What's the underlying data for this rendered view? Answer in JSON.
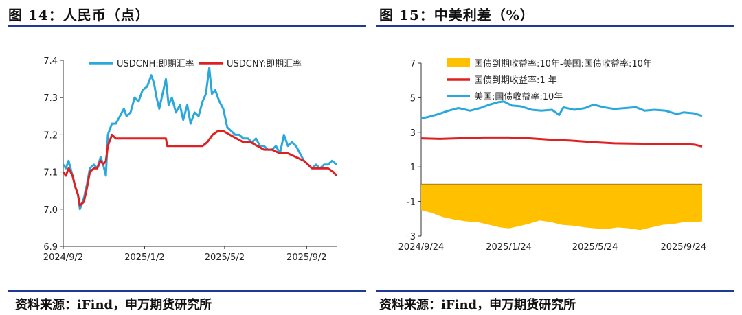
{
  "left": {
    "figure_title": "图 14：人民币（点）",
    "source": "资料来源：iFind，申万期货研究所"
  },
  "right": {
    "figure_title": "图 15：中美利差（%）",
    "source": "资料来源：iFind，申万期货研究所"
  },
  "colors": {
    "usdcnh": "#2aa8dc",
    "usdcny": "#e02020",
    "spread": "#ffc000",
    "us10y": "#2aa8dc",
    "cn1y": "#e02020",
    "rule": "#1f3a93"
  },
  "chart_data": [
    {
      "type": "line",
      "title": "人民币（点）",
      "ylim": [
        6.9,
        7.4
      ],
      "yticks": [
        6.9,
        7.0,
        7.1,
        7.2,
        7.3,
        7.4
      ],
      "ytick_labels": [
        "6.9",
        "7.0",
        "7.1",
        "7.2",
        "7.3",
        "7.4"
      ],
      "xtick_labels": [
        "2024/9/2",
        "2025/1/2",
        "2025/5/2",
        "2025/9/2"
      ],
      "xtick_dates": [
        "2024-09-02",
        "2025-01-02",
        "2025-05-02",
        "2025-09-02"
      ],
      "x_range": [
        "2024-09-02",
        "2025-10-17"
      ],
      "legend_position": "top",
      "grid": false,
      "series": [
        {
          "name": "USDCNH:即期汇率",
          "points": [
            [
              "2024-09-02",
              7.12
            ],
            [
              "2024-09-06",
              7.11
            ],
            [
              "2024-09-10",
              7.13
            ],
            [
              "2024-09-16",
              7.09
            ],
            [
              "2024-09-20",
              7.06
            ],
            [
              "2024-09-24",
              7.04
            ],
            [
              "2024-09-27",
              7.0
            ],
            [
              "2024-10-03",
              7.03
            ],
            [
              "2024-10-08",
              7.07
            ],
            [
              "2024-10-12",
              7.11
            ],
            [
              "2024-10-18",
              7.12
            ],
            [
              "2024-10-23",
              7.11
            ],
            [
              "2024-10-28",
              7.14
            ],
            [
              "2024-11-01",
              7.12
            ],
            [
              "2024-11-05",
              7.09
            ],
            [
              "2024-11-08",
              7.2
            ],
            [
              "2024-11-14",
              7.23
            ],
            [
              "2024-11-20",
              7.23
            ],
            [
              "2024-11-26",
              7.25
            ],
            [
              "2024-12-02",
              7.27
            ],
            [
              "2024-12-06",
              7.25
            ],
            [
              "2024-12-12",
              7.26
            ],
            [
              "2024-12-18",
              7.3
            ],
            [
              "2024-12-24",
              7.29
            ],
            [
              "2024-12-30",
              7.32
            ],
            [
              "2025-01-06",
              7.33
            ],
            [
              "2025-01-12",
              7.36
            ],
            [
              "2025-01-16",
              7.34
            ],
            [
              "2025-01-20",
              7.3
            ],
            [
              "2025-01-24",
              7.27
            ],
            [
              "2025-01-29",
              7.31
            ],
            [
              "2025-02-03",
              7.35
            ],
            [
              "2025-02-07",
              7.28
            ],
            [
              "2025-02-12",
              7.3
            ],
            [
              "2025-02-18",
              7.26
            ],
            [
              "2025-02-24",
              7.28
            ],
            [
              "2025-03-01",
              7.24
            ],
            [
              "2025-03-07",
              7.28
            ],
            [
              "2025-03-12",
              7.23
            ],
            [
              "2025-03-18",
              7.26
            ],
            [
              "2025-03-24",
              7.25
            ],
            [
              "2025-03-30",
              7.29
            ],
            [
              "2025-04-04",
              7.31
            ],
            [
              "2025-04-09",
              7.38
            ],
            [
              "2025-04-13",
              7.31
            ],
            [
              "2025-04-18",
              7.32
            ],
            [
              "2025-04-24",
              7.29
            ],
            [
              "2025-04-30",
              7.27
            ],
            [
              "2025-05-06",
              7.22
            ],
            [
              "2025-05-12",
              7.21
            ],
            [
              "2025-05-18",
              7.2
            ],
            [
              "2025-05-24",
              7.2
            ],
            [
              "2025-05-30",
              7.19
            ],
            [
              "2025-06-06",
              7.19
            ],
            [
              "2025-06-12",
              7.18
            ],
            [
              "2025-06-18",
              7.19
            ],
            [
              "2025-06-24",
              7.17
            ],
            [
              "2025-06-30",
              7.17
            ],
            [
              "2025-07-06",
              7.16
            ],
            [
              "2025-07-12",
              7.16
            ],
            [
              "2025-07-18",
              7.17
            ],
            [
              "2025-07-24",
              7.15
            ],
            [
              "2025-07-30",
              7.2
            ],
            [
              "2025-08-05",
              7.17
            ],
            [
              "2025-08-11",
              7.18
            ],
            [
              "2025-08-17",
              7.17
            ],
            [
              "2025-08-23",
              7.15
            ],
            [
              "2025-08-29",
              7.13
            ],
            [
              "2025-09-04",
              7.12
            ],
            [
              "2025-09-10",
              7.11
            ],
            [
              "2025-09-16",
              7.12
            ],
            [
              "2025-09-22",
              7.11
            ],
            [
              "2025-09-28",
              7.12
            ],
            [
              "2025-10-04",
              7.12
            ],
            [
              "2025-10-10",
              7.13
            ],
            [
              "2025-10-17",
              7.12
            ]
          ]
        },
        {
          "name": "USDCNY:即期汇率",
          "points": [
            [
              "2024-09-02",
              7.1
            ],
            [
              "2024-09-06",
              7.09
            ],
            [
              "2024-09-10",
              7.11
            ],
            [
              "2024-09-16",
              7.09
            ],
            [
              "2024-09-20",
              7.06
            ],
            [
              "2024-09-24",
              7.04
            ],
            [
              "2024-09-27",
              7.01
            ],
            [
              "2024-10-03",
              7.02
            ],
            [
              "2024-10-08",
              7.06
            ],
            [
              "2024-10-12",
              7.1
            ],
            [
              "2024-10-18",
              7.11
            ],
            [
              "2024-10-23",
              7.11
            ],
            [
              "2024-10-28",
              7.13
            ],
            [
              "2024-11-01",
              7.12
            ],
            [
              "2024-11-05",
              7.13
            ],
            [
              "2024-11-08",
              7.17
            ],
            [
              "2024-11-14",
              7.2
            ],
            [
              "2024-11-20",
              7.19
            ],
            [
              "2024-11-26",
              7.19
            ],
            [
              "2024-12-02",
              7.19
            ],
            [
              "2024-12-12",
              7.19
            ],
            [
              "2024-12-24",
              7.19
            ],
            [
              "2025-01-06",
              7.19
            ],
            [
              "2025-01-20",
              7.19
            ],
            [
              "2025-02-03",
              7.19
            ],
            [
              "2025-02-05",
              7.17
            ],
            [
              "2025-02-20",
              7.17
            ],
            [
              "2025-03-10",
              7.17
            ],
            [
              "2025-03-30",
              7.17
            ],
            [
              "2025-04-06",
              7.18
            ],
            [
              "2025-04-14",
              7.2
            ],
            [
              "2025-04-22",
              7.21
            ],
            [
              "2025-04-30",
              7.21
            ],
            [
              "2025-05-10",
              7.2
            ],
            [
              "2025-05-20",
              7.19
            ],
            [
              "2025-05-30",
              7.18
            ],
            [
              "2025-06-10",
              7.18
            ],
            [
              "2025-06-20",
              7.17
            ],
            [
              "2025-06-30",
              7.16
            ],
            [
              "2025-07-12",
              7.16
            ],
            [
              "2025-07-24",
              7.15
            ],
            [
              "2025-08-05",
              7.15
            ],
            [
              "2025-08-17",
              7.14
            ],
            [
              "2025-08-29",
              7.13
            ],
            [
              "2025-09-04",
              7.12
            ],
            [
              "2025-09-10",
              7.11
            ],
            [
              "2025-09-22",
              7.11
            ],
            [
              "2025-10-04",
              7.11
            ],
            [
              "2025-10-12",
              7.1
            ],
            [
              "2025-10-17",
              7.09
            ]
          ]
        }
      ]
    },
    {
      "type": "area",
      "title": "中美利差（%）",
      "ylim": [
        -3,
        7
      ],
      "yticks": [
        -3,
        -1,
        1,
        3,
        5,
        7
      ],
      "ytick_labels": [
        "-3",
        "-1",
        "1",
        "3",
        "5",
        "7"
      ],
      "xtick_labels": [
        "2024/9/24",
        "2025/1/24",
        "2025/5/24",
        "2025/9/24"
      ],
      "xtick_dates": [
        "2024-09-24",
        "2025-01-24",
        "2025-05-24",
        "2025-09-24"
      ],
      "x_range": [
        "2024-09-24",
        "2025-10-20"
      ],
      "legend_position": "top",
      "grid": false,
      "series": [
        {
          "name": "国债到期收益率:10年-美国:国债收益率:10年",
          "kind": "area",
          "points": [
            [
              "2024-09-24",
              -1.5
            ],
            [
              "2024-10-08",
              -1.65
            ],
            [
              "2024-10-24",
              -1.9
            ],
            [
              "2024-11-10",
              -2.05
            ],
            [
              "2024-11-26",
              -2.15
            ],
            [
              "2024-12-12",
              -2.2
            ],
            [
              "2024-12-28",
              -2.35
            ],
            [
              "2025-01-12",
              -2.5
            ],
            [
              "2025-01-24",
              -2.55
            ],
            [
              "2025-02-05",
              -2.45
            ],
            [
              "2025-02-20",
              -2.3
            ],
            [
              "2025-03-08",
              -2.1
            ],
            [
              "2025-03-24",
              -2.2
            ],
            [
              "2025-04-08",
              -2.35
            ],
            [
              "2025-04-24",
              -2.4
            ],
            [
              "2025-05-10",
              -2.5
            ],
            [
              "2025-05-24",
              -2.55
            ],
            [
              "2025-06-08",
              -2.6
            ],
            [
              "2025-06-24",
              -2.5
            ],
            [
              "2025-07-10",
              -2.55
            ],
            [
              "2025-07-26",
              -2.65
            ],
            [
              "2025-08-10",
              -2.5
            ],
            [
              "2025-08-26",
              -2.35
            ],
            [
              "2025-09-10",
              -2.3
            ],
            [
              "2025-09-24",
              -2.2
            ],
            [
              "2025-10-08",
              -2.2
            ],
            [
              "2025-10-20",
              -2.15
            ]
          ]
        },
        {
          "name": "国债到期收益率:1 年",
          "kind": "line",
          "points": [
            [
              "2024-09-24",
              2.65
            ],
            [
              "2024-10-20",
              2.62
            ],
            [
              "2024-11-20",
              2.66
            ],
            [
              "2024-12-20",
              2.7
            ],
            [
              "2025-01-24",
              2.7
            ],
            [
              "2025-02-20",
              2.66
            ],
            [
              "2025-03-20",
              2.58
            ],
            [
              "2025-04-20",
              2.52
            ],
            [
              "2025-05-24",
              2.42
            ],
            [
              "2025-06-20",
              2.36
            ],
            [
              "2025-07-20",
              2.34
            ],
            [
              "2025-08-20",
              2.33
            ],
            [
              "2025-09-24",
              2.32
            ],
            [
              "2025-10-10",
              2.28
            ],
            [
              "2025-10-20",
              2.18
            ]
          ]
        },
        {
          "name": "美国:国债收益率:10年",
          "kind": "line",
          "points": [
            [
              "2024-09-24",
              3.8
            ],
            [
              "2024-10-05",
              3.9
            ],
            [
              "2024-10-18",
              4.05
            ],
            [
              "2024-11-01",
              4.25
            ],
            [
              "2024-11-15",
              4.4
            ],
            [
              "2024-12-01",
              4.25
            ],
            [
              "2024-12-15",
              4.4
            ],
            [
              "2024-12-28",
              4.6
            ],
            [
              "2025-01-10",
              4.75
            ],
            [
              "2025-01-17",
              4.78
            ],
            [
              "2025-01-28",
              4.55
            ],
            [
              "2025-02-10",
              4.5
            ],
            [
              "2025-02-25",
              4.3
            ],
            [
              "2025-03-10",
              4.25
            ],
            [
              "2025-03-25",
              4.3
            ],
            [
              "2025-04-04",
              4.0
            ],
            [
              "2025-04-10",
              4.45
            ],
            [
              "2025-04-25",
              4.3
            ],
            [
              "2025-05-10",
              4.4
            ],
            [
              "2025-05-22",
              4.6
            ],
            [
              "2025-06-05",
              4.45
            ],
            [
              "2025-06-20",
              4.35
            ],
            [
              "2025-07-05",
              4.4
            ],
            [
              "2025-07-20",
              4.45
            ],
            [
              "2025-08-01",
              4.25
            ],
            [
              "2025-08-15",
              4.3
            ],
            [
              "2025-08-30",
              4.25
            ],
            [
              "2025-09-15",
              4.05
            ],
            [
              "2025-09-24",
              4.15
            ],
            [
              "2025-10-08",
              4.1
            ],
            [
              "2025-10-16",
              4.0
            ],
            [
              "2025-10-20",
              3.95
            ]
          ]
        }
      ]
    }
  ]
}
